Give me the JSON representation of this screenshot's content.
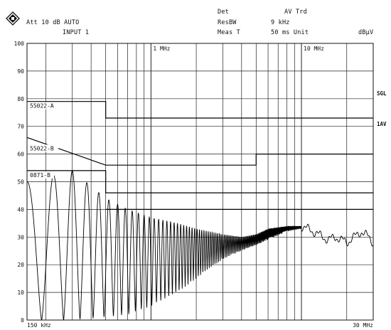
{
  "header": {
    "logo_icon": "rohde-schwarz-diamond-logo",
    "att": "Att 10 dB AUTO",
    "input": "INPUT 1",
    "det_label": "Det",
    "det_value": "AV Trd",
    "resbw_label": "ResBW",
    "resbw_value": "9 kHz",
    "meast_label": "Meas T",
    "meast_value": "50 ms Unit",
    "unit": "dBµV"
  },
  "chart_data": {
    "type": "line",
    "x_scale": "log",
    "x_range_mhz": [
      0.15,
      30
    ],
    "y_range": [
      0,
      100
    ],
    "y_ticks": [
      0,
      10,
      20,
      30,
      40,
      50,
      60,
      70,
      80,
      90,
      100
    ],
    "x_tick_labels": [
      {
        "mhz": 0.15,
        "label": "150 kHz"
      },
      {
        "mhz": 1,
        "label": "1 MHz"
      },
      {
        "mhz": 10,
        "label": "10 MHz"
      },
      {
        "mhz": 30,
        "label": "30 MHz"
      }
    ],
    "right_labels": [
      {
        "y": 82,
        "label": "SGL"
      },
      {
        "y": 71,
        "label": "1AV"
      }
    ],
    "grid": true,
    "limit_lines": [
      {
        "name": "55022-A",
        "points": [
          [
            0.15,
            79
          ],
          [
            0.5,
            79
          ],
          [
            0.5,
            73
          ],
          [
            30,
            73
          ]
        ]
      },
      {
        "name": "55022-B",
        "points": [
          [
            0.15,
            66
          ],
          [
            0.5,
            56
          ],
          [
            5,
            56
          ],
          [
            5,
            60
          ],
          [
            30,
            60
          ]
        ]
      },
      {
        "name": "0871-B",
        "points": [
          [
            0.15,
            54
          ],
          [
            0.5,
            54
          ],
          [
            0.5,
            46
          ],
          [
            30,
            46
          ]
        ]
      },
      {
        "name": "",
        "points": [
          [
            0.5,
            40
          ],
          [
            30,
            40
          ]
        ]
      }
    ],
    "series": [
      {
        "trace": "spectrum",
        "envelope_top": [
          [
            0.15,
            50
          ],
          [
            0.3,
            54
          ],
          [
            0.5,
            44
          ],
          [
            0.7,
            40
          ],
          [
            1,
            37
          ],
          [
            1.5,
            35
          ],
          [
            2,
            33
          ],
          [
            3,
            31
          ],
          [
            4,
            30
          ],
          [
            5,
            31
          ],
          [
            6,
            33
          ],
          [
            8,
            34
          ],
          [
            10,
            34
          ],
          [
            12,
            32
          ],
          [
            15,
            29
          ],
          [
            17,
            30
          ],
          [
            20,
            28
          ],
          [
            25,
            32
          ],
          [
            28,
            30
          ],
          [
            30,
            28
          ]
        ],
        "envelope_bottom": [
          [
            0.15,
            0
          ],
          [
            0.3,
            0
          ],
          [
            0.5,
            1
          ],
          [
            0.7,
            2
          ],
          [
            1,
            5
          ],
          [
            1.5,
            10
          ],
          [
            2,
            15
          ],
          [
            3,
            22
          ],
          [
            4,
            25
          ],
          [
            5,
            27
          ],
          [
            6,
            29
          ],
          [
            8,
            32
          ],
          [
            10,
            33
          ]
        ]
      }
    ]
  }
}
